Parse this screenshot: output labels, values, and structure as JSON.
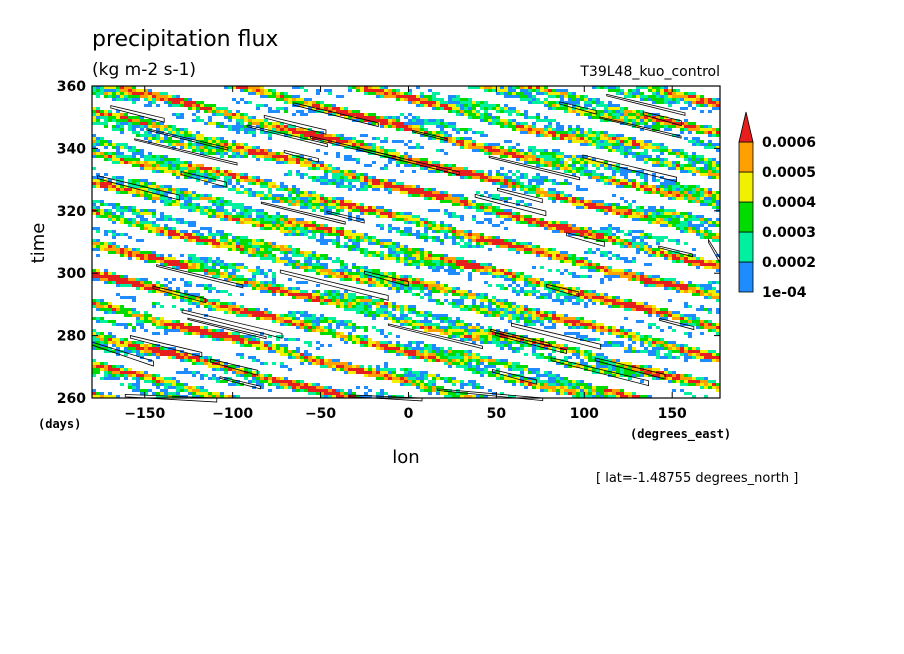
{
  "chart_data": {
    "type": "heatmap",
    "title": "precipitation flux",
    "subtitle": "(kg m-2 s-1)",
    "case_label": "T39L48_kuo_control",
    "xlabel": "lon",
    "ylabel": "time",
    "x_units": "(degrees_east)",
    "y_units": "(days)",
    "footnote": "[ lat=-1.48755 degrees_north ]",
    "xlim": [
      -180,
      177.19
    ],
    "ylim": [
      260,
      360
    ],
    "xticks": [
      -150,
      -100,
      -50,
      0,
      50,
      100,
      150
    ],
    "yticks": [
      260,
      280,
      300,
      320,
      340,
      360
    ],
    "colorbar": {
      "levels": [
        "1e-04",
        "0.0002",
        "0.0003",
        "0.0004",
        "0.0005",
        "0.0006"
      ],
      "colors": [
        "#1e8cff",
        "#00f0a0",
        "#00dc00",
        "#f0f000",
        "#ffa000",
        "#e61e1e"
      ],
      "extend": "max"
    },
    "pattern": {
      "description_value": "eastward-tilted streaks of precipitation over lon-time",
      "streak_slope_deg_per_day": -7.5,
      "contour_color": "#000000"
    }
  }
}
